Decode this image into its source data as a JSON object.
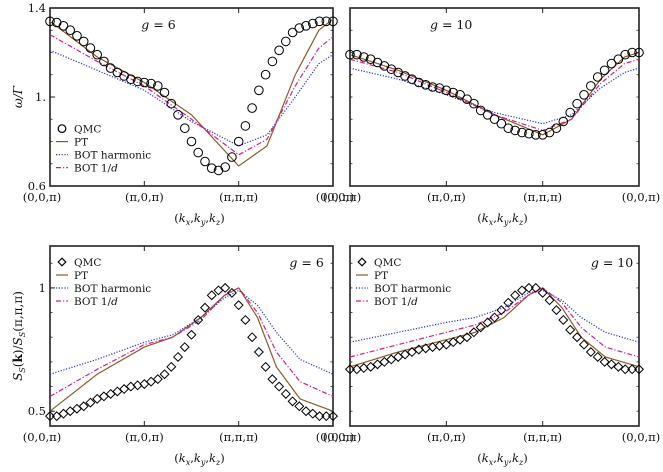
{
  "chart_data": [
    {
      "type": "line",
      "panel": "top-left",
      "title": "g = 6",
      "xlabel": "(k_x,k_y,k_z)",
      "ylabel": "ω/Γ",
      "xticks": [
        "(0,0,π)",
        "(π,0,π)",
        "(π,π,π)",
        "(0,0,π)"
      ],
      "yticks": [
        {
          "value": 0.6,
          "label": "0.6"
        },
        {
          "value": 1.0,
          "label": "1."
        },
        {
          "value": 1.4,
          "label": "1.4"
        }
      ],
      "ylim": [
        0.6,
        1.4
      ],
      "legend": "bottom-left",
      "series": [
        {
          "name": "QMC",
          "marker": "circle",
          "color": "#000000",
          "x": [
            0.0,
            0.0714,
            0.1429,
            0.2143,
            0.2857,
            0.3571,
            0.4286,
            0.5,
            0.5714,
            0.6429,
            0.7143,
            0.7857,
            0.8571,
            0.9286,
            1.0,
            1.0714,
            1.1429,
            1.2143,
            1.2857,
            1.3571,
            1.4286,
            1.5,
            1.5714,
            1.6429,
            1.7143,
            1.7857,
            1.8571,
            1.9286,
            2.0,
            2.0714,
            2.1429,
            2.2143,
            2.2857,
            2.3571,
            2.4286,
            2.5,
            2.5714,
            2.6429,
            2.7143,
            2.7857,
            2.8571,
            2.9286,
            3.0
          ],
          "y": [
            1.34,
            1.335,
            1.32,
            1.3,
            1.275,
            1.25,
            1.22,
            1.19,
            1.16,
            1.13,
            1.11,
            1.095,
            1.08,
            1.07,
            1.065,
            1.06,
            1.05,
            1.02,
            0.97,
            0.92,
            0.86,
            0.8,
            0.75,
            0.71,
            0.68,
            0.67,
            0.685,
            0.73,
            0.8,
            0.87,
            0.95,
            1.03,
            1.1,
            1.16,
            1.21,
            1.25,
            1.29,
            1.31,
            1.32,
            1.33,
            1.34,
            1.34,
            1.34
          ]
        },
        {
          "name": "PT",
          "style": "solid",
          "color": "#8b5a2b",
          "x": [
            0.0,
            0.5,
            1.0,
            1.5,
            2.0,
            2.3,
            2.6,
            2.85,
            3.0
          ],
          "y": [
            1.34,
            1.18,
            1.065,
            0.92,
            0.69,
            0.78,
            1.1,
            1.3,
            1.35
          ]
        },
        {
          "name": "BOT harmonic",
          "style": "dotted",
          "color": "#2233dd",
          "x": [
            0.0,
            0.5,
            1.0,
            1.5,
            2.0,
            2.3,
            2.6,
            2.85,
            3.0
          ],
          "y": [
            1.21,
            1.12,
            1.03,
            0.89,
            0.78,
            0.83,
            1.0,
            1.15,
            1.19
          ]
        },
        {
          "name": "BOT 1/d",
          "style": "dashdot",
          "color": "#cc2288",
          "x": [
            0.0,
            0.5,
            1.0,
            1.5,
            2.0,
            2.3,
            2.6,
            2.85,
            3.0
          ],
          "y": [
            1.28,
            1.16,
            1.05,
            0.9,
            0.74,
            0.81,
            1.05,
            1.22,
            1.27
          ]
        }
      ]
    },
    {
      "type": "line",
      "panel": "top-right",
      "title": "g = 10",
      "xlabel": "(k_x,k_y,k_z)",
      "xticks": [
        "(0,0,π)",
        "(π,0,π)",
        "(π,π,π)",
        "(0,0,π)"
      ],
      "ylim": [
        0.6,
        1.4
      ],
      "series": [
        {
          "name": "QMC",
          "marker": "circle",
          "color": "#000000",
          "x": [
            0.0,
            0.0714,
            0.1429,
            0.2143,
            0.2857,
            0.3571,
            0.4286,
            0.5,
            0.5714,
            0.6429,
            0.7143,
            0.7857,
            0.8571,
            0.9286,
            1.0,
            1.0714,
            1.1429,
            1.2143,
            1.2857,
            1.3571,
            1.4286,
            1.5,
            1.5714,
            1.6429,
            1.7143,
            1.7857,
            1.8571,
            1.9286,
            2.0,
            2.0714,
            2.1429,
            2.2143,
            2.2857,
            2.3571,
            2.4286,
            2.5,
            2.5714,
            2.6429,
            2.7143,
            2.7857,
            2.8571,
            2.9286,
            3.0
          ],
          "y": [
            1.19,
            1.19,
            1.18,
            1.17,
            1.155,
            1.14,
            1.125,
            1.11,
            1.095,
            1.08,
            1.065,
            1.055,
            1.045,
            1.04,
            1.03,
            1.02,
            1.01,
            0.99,
            0.97,
            0.94,
            0.92,
            0.9,
            0.88,
            0.86,
            0.85,
            0.84,
            0.835,
            0.83,
            0.83,
            0.84,
            0.86,
            0.89,
            0.93,
            0.97,
            1.01,
            1.05,
            1.09,
            1.12,
            1.15,
            1.17,
            1.19,
            1.2,
            1.2
          ]
        },
        {
          "name": "PT",
          "style": "solid",
          "color": "#8b5a2b",
          "x": [
            0.0,
            0.5,
            1.0,
            1.5,
            2.0,
            2.3,
            2.6,
            2.85,
            3.0
          ],
          "y": [
            1.19,
            1.12,
            1.03,
            0.92,
            0.83,
            0.9,
            1.08,
            1.18,
            1.2
          ]
        },
        {
          "name": "BOT harmonic",
          "style": "dotted",
          "color": "#2233dd",
          "x": [
            0.0,
            0.5,
            1.0,
            1.5,
            2.0,
            2.3,
            2.6,
            2.85,
            3.0
          ],
          "y": [
            1.13,
            1.08,
            1.01,
            0.93,
            0.88,
            0.92,
            1.04,
            1.11,
            1.13
          ]
        },
        {
          "name": "BOT 1/d",
          "style": "dashdot",
          "color": "#cc2288",
          "x": [
            0.0,
            0.5,
            1.0,
            1.5,
            2.0,
            2.3,
            2.6,
            2.85,
            3.0
          ],
          "y": [
            1.17,
            1.11,
            1.02,
            0.92,
            0.85,
            0.9,
            1.06,
            1.15,
            1.17
          ]
        }
      ]
    },
    {
      "type": "line",
      "panel": "bottom-left",
      "title": "g = 6",
      "xlabel": "(k_x,k_y,k_z)",
      "ylabel": "S_S(k)/S_S(π,π,π)",
      "xticks": [
        "(0,0,π)",
        "(π,0,π)",
        "(π,π,π)",
        "(0,0,π)"
      ],
      "yticks": [
        {
          "value": 0.5,
          "label": "0.5"
        },
        {
          "value": 1.0,
          "label": "1"
        }
      ],
      "ylim": [
        0.44,
        1.17
      ],
      "legend": "top-left",
      "series": [
        {
          "name": "QMC",
          "marker": "diamond",
          "color": "#000000",
          "x": [
            0.0,
            0.0714,
            0.1429,
            0.2143,
            0.2857,
            0.3571,
            0.4286,
            0.5,
            0.5714,
            0.6429,
            0.7143,
            0.7857,
            0.8571,
            0.9286,
            1.0,
            1.0714,
            1.1429,
            1.2143,
            1.2857,
            1.3571,
            1.4286,
            1.5,
            1.5714,
            1.6429,
            1.7143,
            1.7857,
            1.8571,
            1.9286,
            2.0,
            2.0714,
            2.1429,
            2.2143,
            2.2857,
            2.3571,
            2.4286,
            2.5,
            2.5714,
            2.6429,
            2.7143,
            2.7857,
            2.8571,
            2.9286,
            3.0
          ],
          "y": [
            0.48,
            0.48,
            0.49,
            0.5,
            0.51,
            0.52,
            0.535,
            0.55,
            0.56,
            0.57,
            0.58,
            0.59,
            0.6,
            0.605,
            0.61,
            0.62,
            0.63,
            0.65,
            0.68,
            0.72,
            0.76,
            0.81,
            0.87,
            0.92,
            0.97,
            0.99,
            1.0,
            0.98,
            0.93,
            0.87,
            0.8,
            0.74,
            0.68,
            0.63,
            0.6,
            0.57,
            0.54,
            0.52,
            0.5,
            0.49,
            0.48,
            0.48,
            0.48
          ]
        },
        {
          "name": "PT",
          "style": "solid",
          "color": "#8b5a2b",
          "x": [
            0.0,
            0.5,
            1.0,
            1.3,
            1.6,
            1.85,
            2.0,
            2.2,
            2.4,
            2.65,
            3.0
          ],
          "y": [
            0.5,
            0.65,
            0.76,
            0.8,
            0.88,
            0.97,
            1.0,
            0.88,
            0.68,
            0.55,
            0.5
          ]
        },
        {
          "name": "BOT harmonic",
          "style": "dotted",
          "color": "#2233dd",
          "x": [
            0.0,
            0.5,
            1.0,
            1.3,
            1.6,
            1.85,
            2.0,
            2.2,
            2.4,
            2.65,
            3.0
          ],
          "y": [
            0.65,
            0.71,
            0.78,
            0.81,
            0.88,
            0.96,
            0.99,
            0.93,
            0.82,
            0.71,
            0.65
          ]
        },
        {
          "name": "BOT 1/d",
          "style": "dashdot",
          "color": "#cc2288",
          "x": [
            0.0,
            0.5,
            1.0,
            1.3,
            1.6,
            1.85,
            2.0,
            2.2,
            2.4,
            2.65,
            3.0
          ],
          "y": [
            0.56,
            0.67,
            0.77,
            0.8,
            0.87,
            0.97,
            1.0,
            0.9,
            0.74,
            0.62,
            0.56
          ]
        }
      ]
    },
    {
      "type": "line",
      "panel": "bottom-right",
      "title": "g = 10",
      "xlabel": "(k_x,k_y,k_z)",
      "xticks": [
        "(0,0,π)",
        "(π,0,π)",
        "(π,π,π)",
        "(0,0,π)"
      ],
      "ylim": [
        0.44,
        1.17
      ],
      "legend": "top-left",
      "series": [
        {
          "name": "QMC",
          "marker": "diamond",
          "color": "#000000",
          "x": [
            0.0,
            0.0714,
            0.1429,
            0.2143,
            0.2857,
            0.3571,
            0.4286,
            0.5,
            0.5714,
            0.6429,
            0.7143,
            0.7857,
            0.8571,
            0.9286,
            1.0,
            1.0714,
            1.1429,
            1.2143,
            1.2857,
            1.3571,
            1.4286,
            1.5,
            1.5714,
            1.6429,
            1.7143,
            1.7857,
            1.8571,
            1.9286,
            2.0,
            2.0714,
            2.1429,
            2.2143,
            2.2857,
            2.3571,
            2.4286,
            2.5,
            2.5714,
            2.6429,
            2.7143,
            2.7857,
            2.8571,
            2.9286,
            3.0
          ],
          "y": [
            0.67,
            0.67,
            0.675,
            0.68,
            0.69,
            0.7,
            0.71,
            0.72,
            0.73,
            0.74,
            0.75,
            0.755,
            0.76,
            0.765,
            0.77,
            0.78,
            0.79,
            0.8,
            0.82,
            0.84,
            0.86,
            0.88,
            0.91,
            0.94,
            0.97,
            0.99,
            1.0,
            1.0,
            0.98,
            0.95,
            0.91,
            0.87,
            0.83,
            0.8,
            0.77,
            0.74,
            0.72,
            0.7,
            0.69,
            0.68,
            0.67,
            0.67,
            0.67
          ]
        },
        {
          "name": "PT",
          "style": "solid",
          "color": "#8b5a2b",
          "x": [
            0.0,
            0.5,
            1.0,
            1.3,
            1.6,
            1.85,
            2.0,
            2.2,
            2.4,
            2.65,
            3.0
          ],
          "y": [
            0.68,
            0.74,
            0.79,
            0.82,
            0.88,
            0.97,
            1.0,
            0.92,
            0.8,
            0.72,
            0.68
          ]
        },
        {
          "name": "BOT harmonic",
          "style": "dotted",
          "color": "#2233dd",
          "x": [
            0.0,
            0.5,
            1.0,
            1.3,
            1.6,
            1.85,
            2.0,
            2.2,
            2.4,
            2.65,
            3.0
          ],
          "y": [
            0.78,
            0.82,
            0.86,
            0.88,
            0.92,
            0.98,
            0.99,
            0.95,
            0.88,
            0.82,
            0.78
          ]
        },
        {
          "name": "BOT 1/d",
          "style": "dashdot",
          "color": "#cc2288",
          "x": [
            0.0,
            0.5,
            1.0,
            1.3,
            1.6,
            1.85,
            2.0,
            2.2,
            2.4,
            2.65,
            3.0
          ],
          "y": [
            0.72,
            0.77,
            0.82,
            0.85,
            0.9,
            0.97,
            1.0,
            0.94,
            0.84,
            0.76,
            0.72
          ]
        }
      ]
    }
  ]
}
